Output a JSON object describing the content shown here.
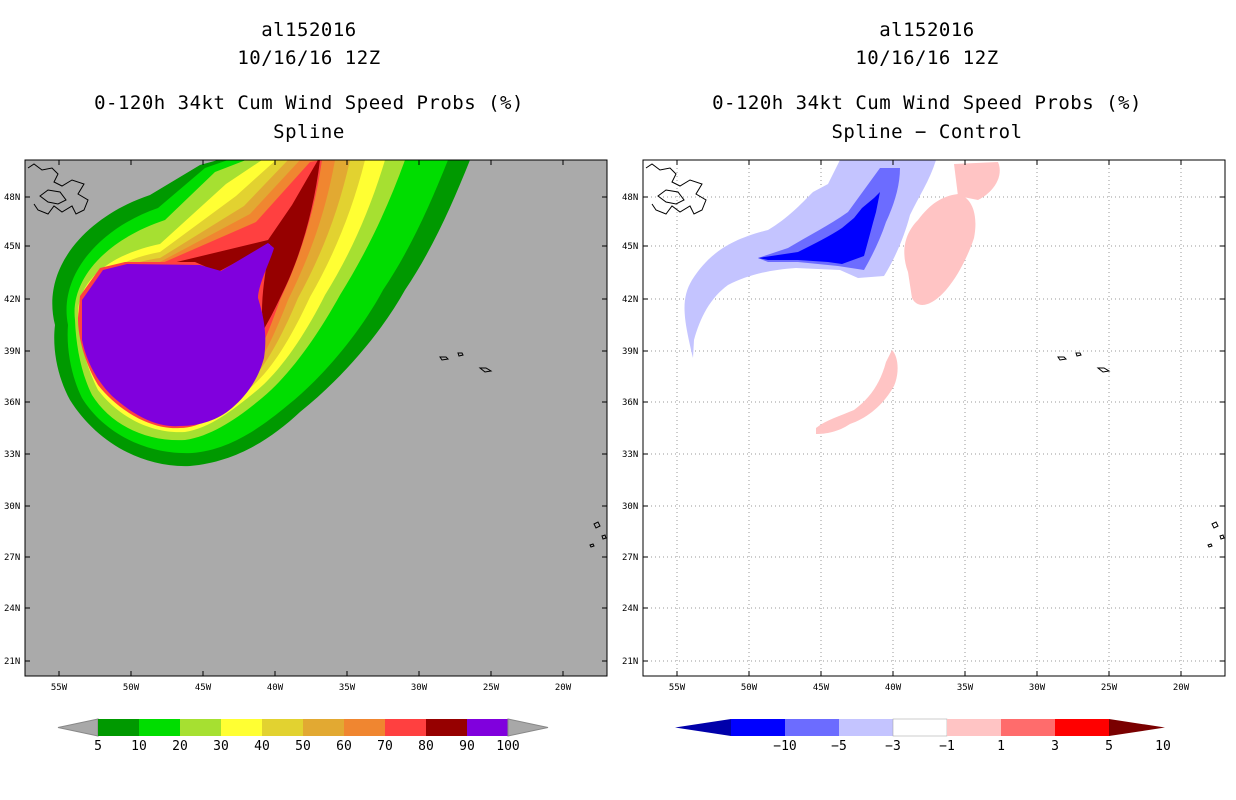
{
  "left_panel": {
    "storm_id": "al152016",
    "datetime": "10/16/16 12Z",
    "product": "0-120h 34kt Cum Wind Speed Probs (%)",
    "subtitle": "Spline",
    "colorbar": {
      "labels": [
        "5",
        "10",
        "20",
        "30",
        "40",
        "50",
        "60",
        "70",
        "80",
        "90",
        "100"
      ],
      "colors": [
        "#009900",
        "#00dd00",
        "#a6e031",
        "#ffff33",
        "#e2d230",
        "#e2a932",
        "#f08630",
        "#ff4040",
        "#960000",
        "#8000dd"
      ],
      "extend_color": "#a8a8a8"
    }
  },
  "right_panel": {
    "storm_id": "al152016",
    "datetime": "10/16/16 12Z",
    "product": "0-120h 34kt Cum Wind Speed Probs (%)",
    "subtitle": "Spline − Control",
    "colorbar": {
      "labels": [
        "−10",
        "−5",
        "−3",
        "−1",
        "1",
        "3",
        "5",
        "10"
      ],
      "colors": [
        "#0000aa",
        "#0000ff",
        "#6c6cff",
        "#c4c4ff",
        "#ffffff",
        "#ffc4c4",
        "#ff6c6c",
        "#ff0000",
        "#7a0000"
      ]
    }
  },
  "axes": {
    "lat_labels": [
      "48N",
      "45N",
      "42N",
      "39N",
      "36N",
      "33N",
      "30N",
      "27N",
      "24N",
      "21N"
    ],
    "lon_labels": [
      "55W",
      "50W",
      "45W",
      "40W",
      "35W",
      "30W",
      "25W",
      "20W"
    ]
  },
  "colors": {
    "map_background_left": "#aaaaaa",
    "map_background_right": "#ffffff",
    "grid": "#999999"
  }
}
